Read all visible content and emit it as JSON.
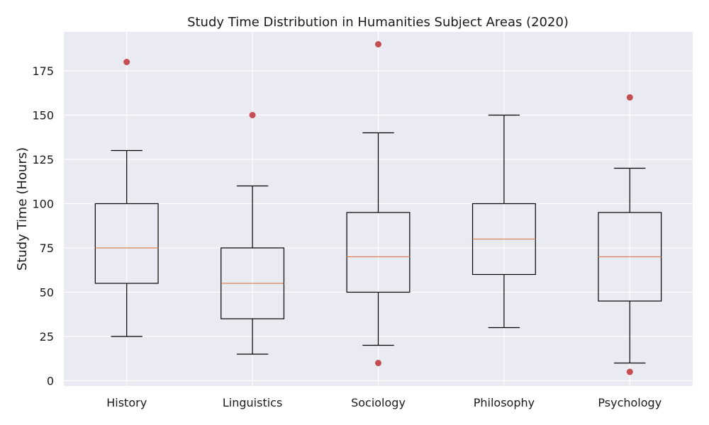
{
  "chart_data": {
    "type": "boxplot",
    "title": "Study Time Distribution in Humanities Subject Areas (2020)",
    "xlabel": "",
    "ylabel": "Study Time (Hours)",
    "ylim": [
      -3,
      197
    ],
    "yticks": [
      0,
      25,
      50,
      75,
      100,
      125,
      150,
      175
    ],
    "grid": true,
    "categories": [
      "History",
      "Linguistics",
      "Sociology",
      "Philosophy",
      "Psychology"
    ],
    "boxes": [
      {
        "category": "History",
        "whisker_low": 25,
        "q1": 55,
        "median": 75,
        "q3": 100,
        "whisker_high": 130,
        "outliers": [
          180
        ]
      },
      {
        "category": "Linguistics",
        "whisker_low": 15,
        "q1": 35,
        "median": 55,
        "q3": 75,
        "whisker_high": 110,
        "outliers": [
          150
        ]
      },
      {
        "category": "Sociology",
        "whisker_low": 20,
        "q1": 50,
        "median": 70,
        "q3": 95,
        "whisker_high": 140,
        "outliers": [
          190,
          10
        ]
      },
      {
        "category": "Philosophy",
        "whisker_low": 30,
        "q1": 60,
        "median": 80,
        "q3": 100,
        "whisker_high": 150,
        "outliers": []
      },
      {
        "category": "Psychology",
        "whisker_low": 10,
        "q1": 45,
        "median": 70,
        "q3": 95,
        "whisker_high": 120,
        "outliers": [
          160,
          5
        ]
      }
    ],
    "colors": {
      "plot_background": "#eaeaf2",
      "grid": "#ffffff",
      "box_edge": "#000000",
      "median": "#dd8452",
      "outlier": "#c44e52"
    }
  }
}
